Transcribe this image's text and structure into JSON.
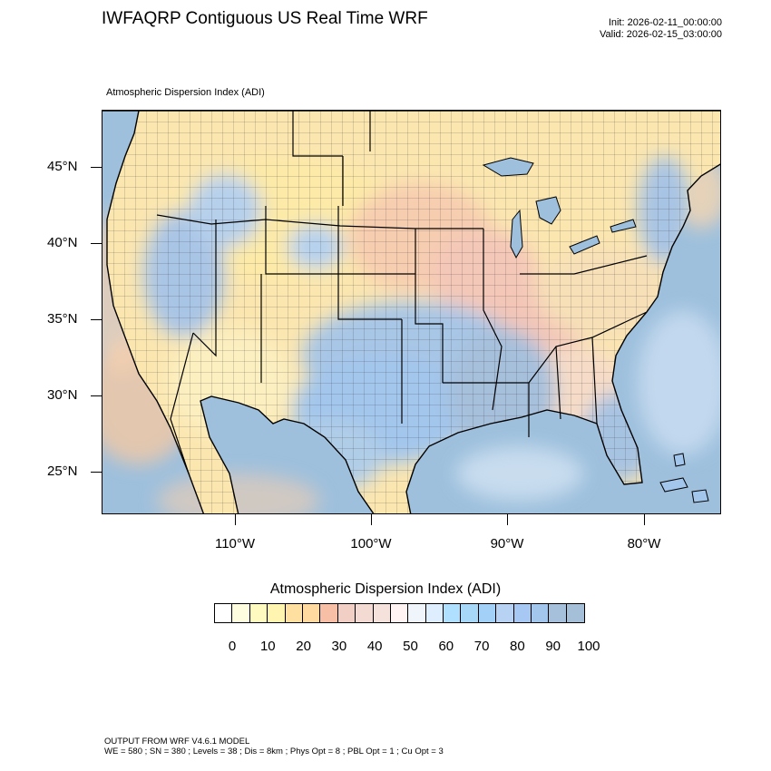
{
  "header": {
    "title": "IWFAQRP Contiguous US Real Time WRF",
    "init": "Init: 2026-02-11_00:00:00",
    "valid": "Valid: 2026-02-15_03:00:00",
    "field_label": "Atmospheric Dispersion Index   (ADI)"
  },
  "map": {
    "lat_labels": [
      "45°N",
      "40°N",
      "35°N",
      "30°N",
      "25°N"
    ],
    "lon_labels": [
      "110°W",
      "100°W",
      "90°W",
      "80°W"
    ]
  },
  "legend": {
    "title": "Atmospheric Dispersion Index  (ADI)",
    "tick_labels": [
      "0",
      "10",
      "20",
      "30",
      "40",
      "50",
      "60",
      "70",
      "80",
      "90",
      "100"
    ],
    "colors": [
      "#ffffff",
      "#fffde0",
      "#fffbc0",
      "#fff4b0",
      "#ffe0a0",
      "#ffd9a0",
      "#f7bfa5",
      "#f2cfc5",
      "#f3dad3",
      "#f6e2dd",
      "#fff3f3",
      "#f0f4fb",
      "#dfeefe",
      "#b0e0ff",
      "#a8d8f8",
      "#a3d0f6",
      "#b8d2f4",
      "#a7c8f2",
      "#a3c6ec",
      "#a6c0dc",
      "#a6bfd8"
    ]
  },
  "footer": {
    "line1": "OUTPUT FROM WRF V4.6.1 MODEL",
    "line2": "WE = 580 ; SN = 380 ; Levels = 38 ; Dis = 8km ; Phys Opt = 8 ; PBL Opt = 1 ; Cu Opt = 3"
  },
  "colors": {
    "ocean": "#9ec0dd",
    "dispersion_high": "#a3c6ec",
    "dispersion_mid": "#f2cfc5",
    "dispersion_low": "#fff4b0"
  }
}
